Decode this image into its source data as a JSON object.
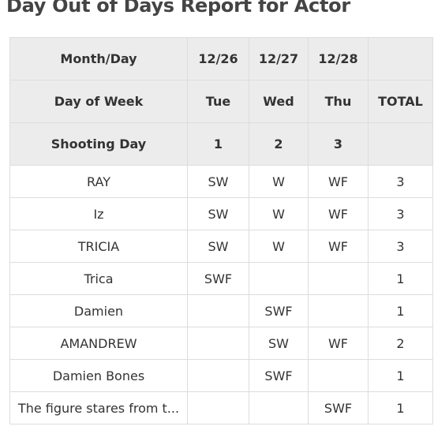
{
  "title": "Day Out of Days Report for Actor",
  "table": {
    "header_rows": [
      [
        "Month/Day",
        "12/26",
        "12/27",
        "12/28",
        null
      ],
      [
        "Day of Week",
        "Tue",
        "Wed",
        "Thu",
        "TOTAL"
      ],
      [
        "Shooting Day",
        1,
        2,
        3,
        null
      ]
    ],
    "rows": [
      [
        "RAY",
        "SW",
        "W",
        "WF",
        3
      ],
      [
        "Iz",
        "SW",
        "W",
        "WF",
        3
      ],
      [
        "TRICIA",
        "SW",
        "W",
        "WF",
        3
      ],
      [
        "Trica",
        "SWF",
        null,
        null,
        1
      ],
      [
        "Damien",
        null,
        "SWF",
        null,
        1
      ],
      [
        "AMANDREW",
        null,
        "SW",
        "WF",
        2
      ],
      [
        "Damien Bones",
        null,
        "SWF",
        null,
        1
      ],
      [
        "The figure stares from t...",
        null,
        null,
        "SWF",
        1
      ]
    ]
  }
}
